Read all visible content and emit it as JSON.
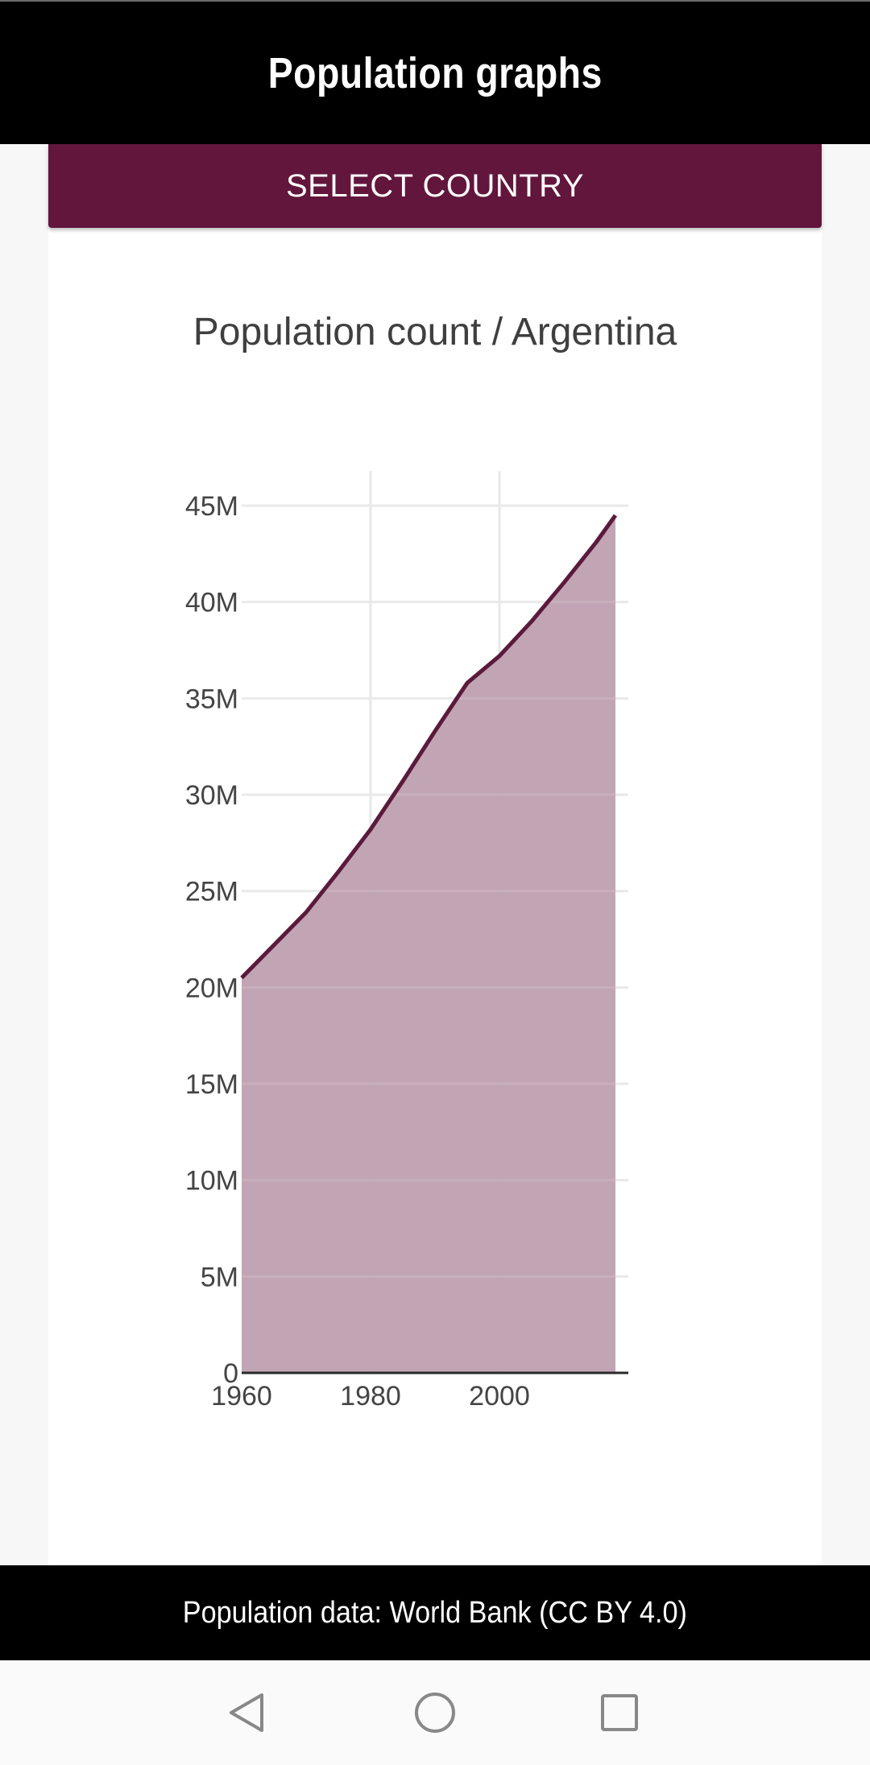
{
  "app": {
    "title": "Population graphs"
  },
  "select_button": {
    "label": "SELECT COUNTRY"
  },
  "chart_title": "Population count / Argentina",
  "footer": {
    "credit": "Population data: World Bank (CC BY 4.0)"
  },
  "navigation": {
    "back_icon": "back-triangle-icon",
    "home_icon": "home-circle-icon",
    "recents_icon": "recents-square-icon"
  },
  "colors": {
    "accent": "#62163c",
    "area_fill": "#bfa0b0",
    "line": "#5b1a3c",
    "grid": "#e8e8e8"
  },
  "chart_data": {
    "type": "area",
    "title": "Population count / Argentina",
    "xlabel": "",
    "ylabel": "",
    "xlim": [
      1960,
      2018
    ],
    "ylim": [
      0,
      45000000
    ],
    "x_ticks": [
      1960,
      1980,
      2000
    ],
    "x_tick_labels": [
      "1960",
      "1980",
      "2000"
    ],
    "y_ticks": [
      0,
      5000000,
      10000000,
      15000000,
      20000000,
      25000000,
      30000000,
      35000000,
      40000000,
      45000000
    ],
    "y_tick_labels": [
      "0",
      "5M",
      "10M",
      "15M",
      "20M",
      "25M",
      "30M",
      "35M",
      "40M",
      "45M"
    ],
    "grid": true,
    "legend": "none",
    "series": [
      {
        "x": [
          1960,
          1965,
          1970,
          1975,
          1980,
          1985,
          1990,
          1995,
          2000,
          2005,
          2010,
          2015,
          2018
        ],
        "values": [
          20500000,
          22200000,
          23900000,
          26000000,
          28200000,
          30700000,
          33300000,
          35800000,
          37200000,
          39000000,
          41000000,
          43100000,
          44500000
        ]
      }
    ]
  }
}
